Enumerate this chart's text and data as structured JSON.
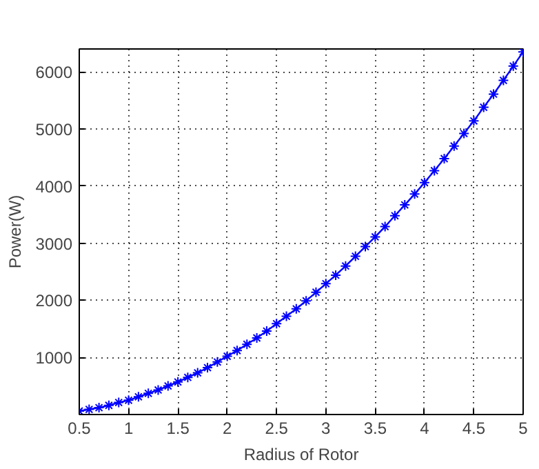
{
  "chart_data": {
    "type": "line",
    "xlabel": "Radius of Rotor",
    "ylabel": "Power(W)",
    "x": [
      0.5,
      0.6,
      0.7,
      0.8,
      0.9,
      1.0,
      1.1,
      1.2,
      1.3,
      1.4,
      1.5,
      1.6,
      1.7,
      1.8,
      1.9,
      2.0,
      2.1,
      2.2,
      2.3,
      2.4,
      2.5,
      2.6,
      2.7,
      2.8,
      2.9,
      3.0,
      3.1,
      3.2,
      3.3,
      3.4,
      3.5,
      3.6,
      3.7,
      3.8,
      3.9,
      4.0,
      4.1,
      4.2,
      4.3,
      4.4,
      4.5,
      4.6,
      4.7,
      4.8,
      4.9,
      5.0
    ],
    "series": [
      {
        "color": "#0000ff",
        "values": [
          60,
          90,
          120,
          160,
          210,
          250,
          310,
          370,
          430,
          500,
          570,
          650,
          730,
          820,
          920,
          1020,
          1120,
          1230,
          1340,
          1460,
          1590,
          1720,
          1850,
          1990,
          2140,
          2290,
          2440,
          2600,
          2770,
          2940,
          3110,
          3290,
          3480,
          3670,
          3860,
          4060,
          4270,
          4480,
          4700,
          4920,
          5140,
          5380,
          5610,
          5850,
          6100,
          6350
        ]
      }
    ],
    "xlim": [
      0.5,
      5
    ],
    "ylim": [
      0,
      6400
    ],
    "xticks": [
      0.5,
      1,
      1.5,
      2,
      2.5,
      3,
      3.5,
      4,
      4.5,
      5
    ],
    "yticks": [
      1000,
      2000,
      3000,
      4000,
      5000,
      6000
    ],
    "grid": true,
    "marker": "cross",
    "line_style": "solid"
  }
}
